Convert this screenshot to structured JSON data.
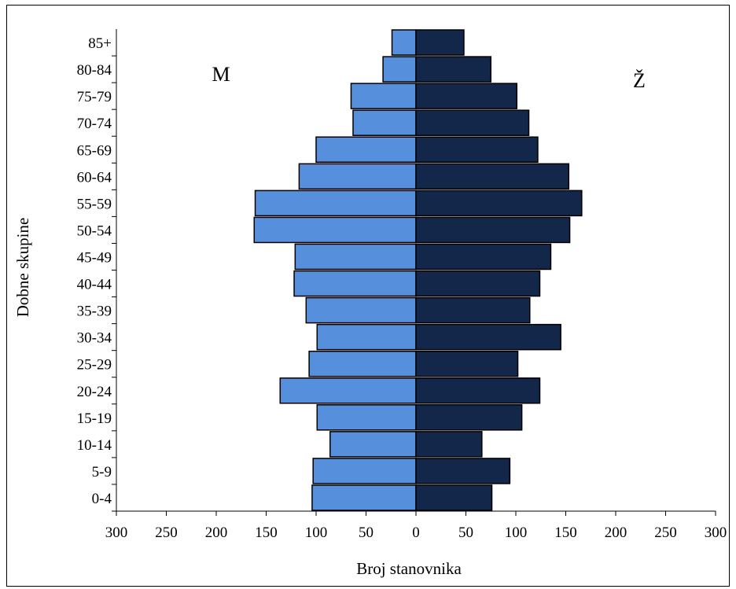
{
  "chart_data": {
    "type": "bar",
    "orientation": "population-pyramid",
    "ylabel": "Dobne skupine",
    "xlabel": "Broj stanovnika",
    "xlim": [
      -300,
      300
    ],
    "x_ticks": [
      -300,
      -250,
      -200,
      -150,
      -100,
      -50,
      0,
      50,
      100,
      150,
      200,
      250,
      300
    ],
    "x_tick_labels": [
      "300",
      "250",
      "200",
      "150",
      "100",
      "50",
      "0",
      "50",
      "100",
      "150",
      "200",
      "250",
      "300"
    ],
    "categories": [
      "0-4",
      "5-9",
      "10-14",
      "15-19",
      "20-24",
      "25-29",
      "30-34",
      "35-39",
      "40-44",
      "45-49",
      "50-54",
      "55-59",
      "60-64",
      "65-69",
      "70-74",
      "75-79",
      "80-84",
      "85+"
    ],
    "series": [
      {
        "name": "M",
        "color": "#568FDB",
        "values": [
          104,
          103,
          86,
          99,
          136,
          107,
          99,
          110,
          122,
          121,
          162,
          161,
          117,
          100,
          63,
          65,
          33,
          24
        ]
      },
      {
        "name": "Ž",
        "color": "#13274A",
        "values": [
          76,
          94,
          66,
          106,
          124,
          102,
          145,
          114,
          124,
          135,
          154,
          166,
          153,
          122,
          113,
          101,
          75,
          48
        ]
      }
    ],
    "grid": false,
    "legend": "in-plot labels"
  }
}
